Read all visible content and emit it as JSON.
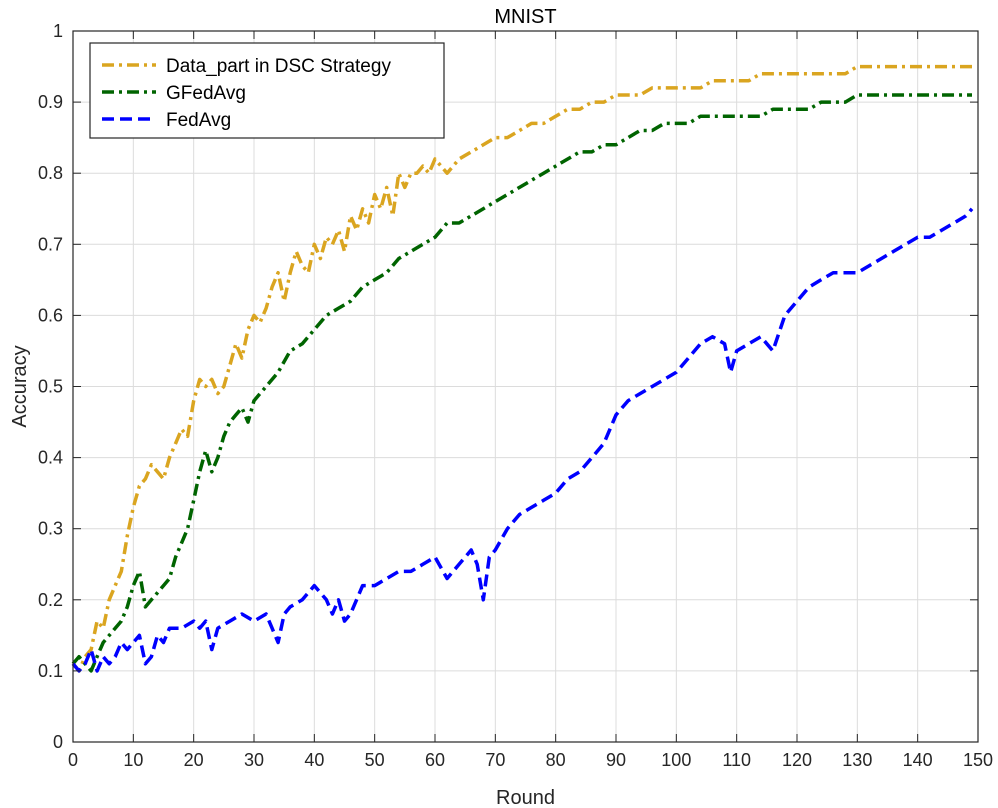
{
  "chart_data": {
    "type": "line",
    "title": "MNIST",
    "xlabel": "Round",
    "ylabel": "Accuracy",
    "xlim": [
      0,
      150
    ],
    "ylim": [
      0,
      1
    ],
    "xticks": [
      0,
      10,
      20,
      30,
      40,
      50,
      60,
      70,
      80,
      90,
      100,
      110,
      120,
      130,
      140,
      150
    ],
    "yticks": [
      0,
      0.1,
      0.2,
      0.3,
      0.4,
      0.5,
      0.6,
      0.7,
      0.8,
      0.9,
      1
    ],
    "grid": true,
    "legend_position": "top-left",
    "series": [
      {
        "name": "Data_part in DSC Strategy",
        "color": "#DAA520",
        "style": "dash-dot",
        "x": [
          0,
          1,
          2,
          3,
          4,
          5,
          6,
          7,
          8,
          9,
          10,
          11,
          12,
          13,
          14,
          15,
          16,
          17,
          18,
          19,
          20,
          21,
          22,
          23,
          24,
          25,
          26,
          27,
          28,
          29,
          30,
          31,
          32,
          33,
          34,
          35,
          36,
          37,
          38,
          39,
          40,
          41,
          42,
          43,
          44,
          45,
          46,
          47,
          48,
          49,
          50,
          51,
          52,
          53,
          54,
          55,
          56,
          57,
          58,
          59,
          60,
          62,
          64,
          66,
          68,
          70,
          72,
          74,
          76,
          78,
          80,
          82,
          84,
          86,
          88,
          90,
          92,
          94,
          96,
          98,
          100,
          102,
          104,
          106,
          108,
          110,
          112,
          114,
          116,
          118,
          120,
          122,
          124,
          126,
          128,
          130,
          132,
          134,
          136,
          138,
          140,
          142,
          144,
          146,
          148,
          149
        ],
        "y": [
          0.11,
          0.1,
          0.12,
          0.13,
          0.17,
          0.16,
          0.2,
          0.22,
          0.24,
          0.29,
          0.33,
          0.36,
          0.37,
          0.39,
          0.38,
          0.37,
          0.4,
          0.42,
          0.44,
          0.43,
          0.48,
          0.51,
          0.5,
          0.51,
          0.49,
          0.5,
          0.53,
          0.56,
          0.54,
          0.58,
          0.6,
          0.59,
          0.61,
          0.64,
          0.66,
          0.62,
          0.66,
          0.69,
          0.67,
          0.66,
          0.7,
          0.68,
          0.71,
          0.7,
          0.72,
          0.69,
          0.74,
          0.72,
          0.75,
          0.73,
          0.77,
          0.75,
          0.78,
          0.74,
          0.8,
          0.78,
          0.8,
          0.8,
          0.81,
          0.8,
          0.82,
          0.8,
          0.82,
          0.83,
          0.84,
          0.85,
          0.85,
          0.86,
          0.87,
          0.87,
          0.88,
          0.89,
          0.89,
          0.9,
          0.9,
          0.91,
          0.91,
          0.91,
          0.92,
          0.92,
          0.92,
          0.92,
          0.92,
          0.93,
          0.93,
          0.93,
          0.93,
          0.94,
          0.94,
          0.94,
          0.94,
          0.94,
          0.94,
          0.94,
          0.94,
          0.95,
          0.95,
          0.95,
          0.95,
          0.95,
          0.95,
          0.95,
          0.95,
          0.95,
          0.95,
          0.95
        ]
      },
      {
        "name": "GFedAvg",
        "color": "#006400",
        "style": "dash-dot",
        "x": [
          0,
          1,
          2,
          3,
          4,
          5,
          6,
          7,
          8,
          9,
          10,
          11,
          12,
          13,
          14,
          15,
          16,
          17,
          18,
          19,
          20,
          21,
          22,
          23,
          24,
          25,
          26,
          27,
          28,
          29,
          30,
          32,
          34,
          36,
          38,
          40,
          42,
          44,
          46,
          48,
          50,
          52,
          54,
          56,
          58,
          60,
          62,
          64,
          66,
          68,
          70,
          72,
          74,
          76,
          78,
          80,
          82,
          84,
          86,
          88,
          90,
          92,
          94,
          96,
          98,
          100,
          102,
          104,
          106,
          108,
          110,
          112,
          114,
          116,
          118,
          120,
          122,
          124,
          126,
          128,
          130,
          132,
          134,
          136,
          138,
          140,
          142,
          144,
          146,
          148,
          149
        ],
        "y": [
          0.11,
          0.12,
          0.11,
          0.1,
          0.12,
          0.14,
          0.15,
          0.16,
          0.17,
          0.19,
          0.22,
          0.24,
          0.19,
          0.2,
          0.21,
          0.22,
          0.23,
          0.26,
          0.28,
          0.3,
          0.34,
          0.38,
          0.41,
          0.38,
          0.4,
          0.43,
          0.45,
          0.46,
          0.47,
          0.45,
          0.48,
          0.5,
          0.52,
          0.55,
          0.56,
          0.58,
          0.6,
          0.61,
          0.62,
          0.64,
          0.65,
          0.66,
          0.68,
          0.69,
          0.7,
          0.71,
          0.73,
          0.73,
          0.74,
          0.75,
          0.76,
          0.77,
          0.78,
          0.79,
          0.8,
          0.81,
          0.82,
          0.83,
          0.83,
          0.84,
          0.84,
          0.85,
          0.86,
          0.86,
          0.87,
          0.87,
          0.87,
          0.88,
          0.88,
          0.88,
          0.88,
          0.88,
          0.88,
          0.89,
          0.89,
          0.89,
          0.89,
          0.9,
          0.9,
          0.9,
          0.91,
          0.91,
          0.91,
          0.91,
          0.91,
          0.91,
          0.91,
          0.91,
          0.91,
          0.91,
          0.91
        ]
      },
      {
        "name": "FedAvg",
        "color": "#0000FF",
        "style": "dash",
        "x": [
          0,
          1,
          2,
          3,
          4,
          5,
          6,
          7,
          8,
          9,
          10,
          11,
          12,
          13,
          14,
          15,
          16,
          18,
          20,
          21,
          22,
          23,
          24,
          26,
          28,
          30,
          32,
          33,
          34,
          35,
          36,
          38,
          40,
          42,
          43,
          44,
          45,
          46,
          48,
          50,
          52,
          54,
          56,
          58,
          60,
          62,
          64,
          66,
          67,
          68,
          69,
          70,
          72,
          74,
          76,
          78,
          80,
          82,
          84,
          86,
          88,
          90,
          92,
          94,
          96,
          98,
          100,
          102,
          104,
          106,
          108,
          109,
          110,
          112,
          114,
          116,
          118,
          120,
          122,
          124,
          126,
          128,
          130,
          132,
          134,
          136,
          138,
          140,
          142,
          144,
          146,
          148,
          149
        ],
        "y": [
          0.11,
          0.1,
          0.11,
          0.13,
          0.1,
          0.12,
          0.11,
          0.12,
          0.14,
          0.13,
          0.14,
          0.15,
          0.11,
          0.12,
          0.15,
          0.14,
          0.16,
          0.16,
          0.17,
          0.16,
          0.17,
          0.13,
          0.16,
          0.17,
          0.18,
          0.17,
          0.18,
          0.16,
          0.14,
          0.18,
          0.19,
          0.2,
          0.22,
          0.2,
          0.18,
          0.2,
          0.17,
          0.18,
          0.22,
          0.22,
          0.23,
          0.24,
          0.24,
          0.25,
          0.26,
          0.23,
          0.25,
          0.27,
          0.25,
          0.2,
          0.26,
          0.27,
          0.3,
          0.32,
          0.33,
          0.34,
          0.35,
          0.37,
          0.38,
          0.4,
          0.42,
          0.46,
          0.48,
          0.49,
          0.5,
          0.51,
          0.52,
          0.54,
          0.56,
          0.57,
          0.56,
          0.52,
          0.55,
          0.56,
          0.57,
          0.55,
          0.6,
          0.62,
          0.64,
          0.65,
          0.66,
          0.66,
          0.66,
          0.67,
          0.68,
          0.69,
          0.7,
          0.71,
          0.71,
          0.72,
          0.73,
          0.74,
          0.75
        ]
      }
    ]
  }
}
